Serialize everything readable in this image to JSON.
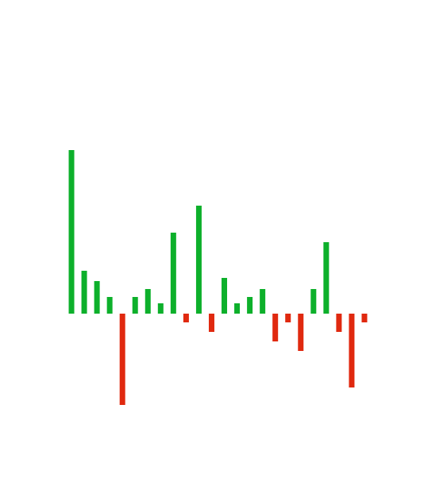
{
  "chart_data": {
    "type": "bar",
    "categories": [
      null,
      null,
      null,
      null,
      null,
      null,
      null,
      null,
      null,
      null,
      null,
      null,
      null,
      null,
      null,
      null,
      null,
      null,
      null,
      null,
      null,
      null,
      null,
      null
    ],
    "values": [
      206,
      54,
      41,
      21,
      -115,
      21,
      31,
      13,
      102,
      -11,
      136,
      -23,
      45,
      13,
      21,
      31,
      -35,
      -11,
      -47,
      31,
      90,
      -23,
      -93,
      -11
    ],
    "color": "#0db02b",
    "negative_color": "#e0290f",
    "ylim": [
      -150,
      250
    ],
    "grid": false
  }
}
